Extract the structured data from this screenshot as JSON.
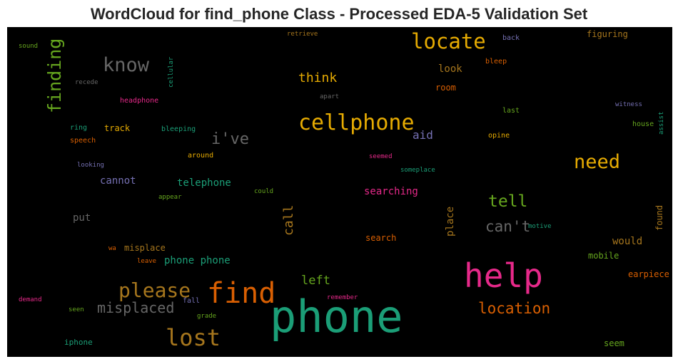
{
  "chart_data": {
    "type": "wordcloud",
    "title": "WordCloud for find_phone Class - Processed EDA-5 Validation Set",
    "background": "#000000",
    "colormap": "Dark2",
    "words": [
      {
        "text": "phone",
        "color": "#1b9e77",
        "orientation": "horizontal"
      },
      {
        "text": "help",
        "color": "#e7298a",
        "orientation": "horizontal"
      },
      {
        "text": "find",
        "color": "#d95f02",
        "orientation": "horizontal"
      },
      {
        "text": "cellphone",
        "color": "#e6ab02",
        "orientation": "horizontal"
      },
      {
        "text": "locate",
        "color": "#e6ab02",
        "orientation": "horizontal"
      },
      {
        "text": "lost",
        "color": "#a6761d",
        "orientation": "horizontal"
      },
      {
        "text": "please",
        "color": "#a6761d",
        "orientation": "horizontal"
      },
      {
        "text": "know",
        "color": "#666666",
        "orientation": "horizontal"
      },
      {
        "text": "finding",
        "color": "#66a61e",
        "orientation": "vertical"
      },
      {
        "text": "need",
        "color": "#e6ab02",
        "orientation": "horizontal"
      },
      {
        "text": "location",
        "color": "#d95f02",
        "orientation": "horizontal"
      },
      {
        "text": "i've",
        "color": "#666666",
        "orientation": "horizontal"
      },
      {
        "text": "misplaced",
        "color": "#666666",
        "orientation": "horizontal"
      },
      {
        "text": "tell",
        "color": "#66a61e",
        "orientation": "horizontal"
      },
      {
        "text": "can't",
        "color": "#666666",
        "orientation": "horizontal"
      },
      {
        "text": "think",
        "color": "#e6ab02",
        "orientation": "horizontal"
      },
      {
        "text": "call",
        "color": "#a6761d",
        "orientation": "vertical"
      },
      {
        "text": "left",
        "color": "#66a61e",
        "orientation": "horizontal"
      },
      {
        "text": "telephone",
        "color": "#1b9e77",
        "orientation": "horizontal"
      },
      {
        "text": "searching",
        "color": "#e7298a",
        "orientation": "horizontal"
      },
      {
        "text": "place",
        "color": "#a6761d",
        "orientation": "vertical"
      },
      {
        "text": "phone phone",
        "color": "#1b9e77",
        "orientation": "horizontal"
      },
      {
        "text": "aid",
        "color": "#7570b3",
        "orientation": "horizontal"
      },
      {
        "text": "cannot",
        "color": "#7570b3",
        "orientation": "horizontal"
      },
      {
        "text": "look",
        "color": "#a6761d",
        "orientation": "horizontal"
      },
      {
        "text": "would",
        "color": "#a6761d",
        "orientation": "horizontal"
      },
      {
        "text": "put",
        "color": "#666666",
        "orientation": "horizontal"
      },
      {
        "text": "misplace",
        "color": "#a6761d",
        "orientation": "horizontal"
      },
      {
        "text": "track",
        "color": "#e6ab02",
        "orientation": "horizontal"
      },
      {
        "text": "search",
        "color": "#d95f02",
        "orientation": "horizontal"
      },
      {
        "text": "room",
        "color": "#d95f02",
        "orientation": "horizontal"
      },
      {
        "text": "mobile",
        "color": "#66a61e",
        "orientation": "horizontal"
      },
      {
        "text": "earpiece",
        "color": "#d95f02",
        "orientation": "horizontal"
      },
      {
        "text": "figuring",
        "color": "#a6761d",
        "orientation": "horizontal"
      },
      {
        "text": "found",
        "color": "#a6761d",
        "orientation": "vertical"
      },
      {
        "text": "seem",
        "color": "#66a61e",
        "orientation": "horizontal"
      },
      {
        "text": "iphone",
        "color": "#1b9e77",
        "orientation": "horizontal"
      },
      {
        "text": "speech",
        "color": "#d95f02",
        "orientation": "horizontal"
      },
      {
        "text": "around",
        "color": "#e6ab02",
        "orientation": "horizontal"
      },
      {
        "text": "headphone",
        "color": "#e7298a",
        "orientation": "horizontal"
      },
      {
        "text": "bleeping",
        "color": "#1b9e77",
        "orientation": "horizontal"
      },
      {
        "text": "ring",
        "color": "#1b9e77",
        "orientation": "horizontal"
      },
      {
        "text": "recede",
        "color": "#666666",
        "orientation": "horizontal"
      },
      {
        "text": "looking",
        "color": "#7570b3",
        "orientation": "horizontal"
      },
      {
        "text": "appear",
        "color": "#66a61e",
        "orientation": "horizontal"
      },
      {
        "text": "could",
        "color": "#66a61e",
        "orientation": "horizontal"
      },
      {
        "text": "someplace",
        "color": "#1b9e77",
        "orientation": "horizontal"
      },
      {
        "text": "seemed",
        "color": "#e7298a",
        "orientation": "horizontal"
      },
      {
        "text": "opine",
        "color": "#e6ab02",
        "orientation": "horizontal"
      },
      {
        "text": "last",
        "color": "#66a61e",
        "orientation": "horizontal"
      },
      {
        "text": "witness",
        "color": "#7570b3",
        "orientation": "horizontal"
      },
      {
        "text": "house",
        "color": "#66a61e",
        "orientation": "horizontal"
      },
      {
        "text": "assist",
        "color": "#1b9e77",
        "orientation": "vertical"
      },
      {
        "text": "motive",
        "color": "#1b9e77",
        "orientation": "horizontal"
      },
      {
        "text": "leave",
        "color": "#d95f02",
        "orientation": "horizontal"
      },
      {
        "text": "wa",
        "color": "#d95f02",
        "orientation": "horizontal"
      },
      {
        "text": "remember",
        "color": "#e7298a",
        "orientation": "horizontal"
      },
      {
        "text": "grade",
        "color": "#66a61e",
        "orientation": "horizontal"
      },
      {
        "text": "fall",
        "color": "#7570b3",
        "orientation": "horizontal"
      },
      {
        "text": "seen",
        "color": "#66a61e",
        "orientation": "horizontal"
      },
      {
        "text": "demand",
        "color": "#e7298a",
        "orientation": "horizontal"
      },
      {
        "text": "sound",
        "color": "#66a61e",
        "orientation": "horizontal"
      },
      {
        "text": "retrieve",
        "color": "#a6761d",
        "orientation": "horizontal"
      },
      {
        "text": "back",
        "color": "#7570b3",
        "orientation": "horizontal"
      },
      {
        "text": "bleep",
        "color": "#d95f02",
        "orientation": "horizontal"
      },
      {
        "text": "apart",
        "color": "#666666",
        "orientation": "horizontal"
      },
      {
        "text": "cellular",
        "color": "#1b9e77",
        "orientation": "vertical"
      }
    ]
  }
}
